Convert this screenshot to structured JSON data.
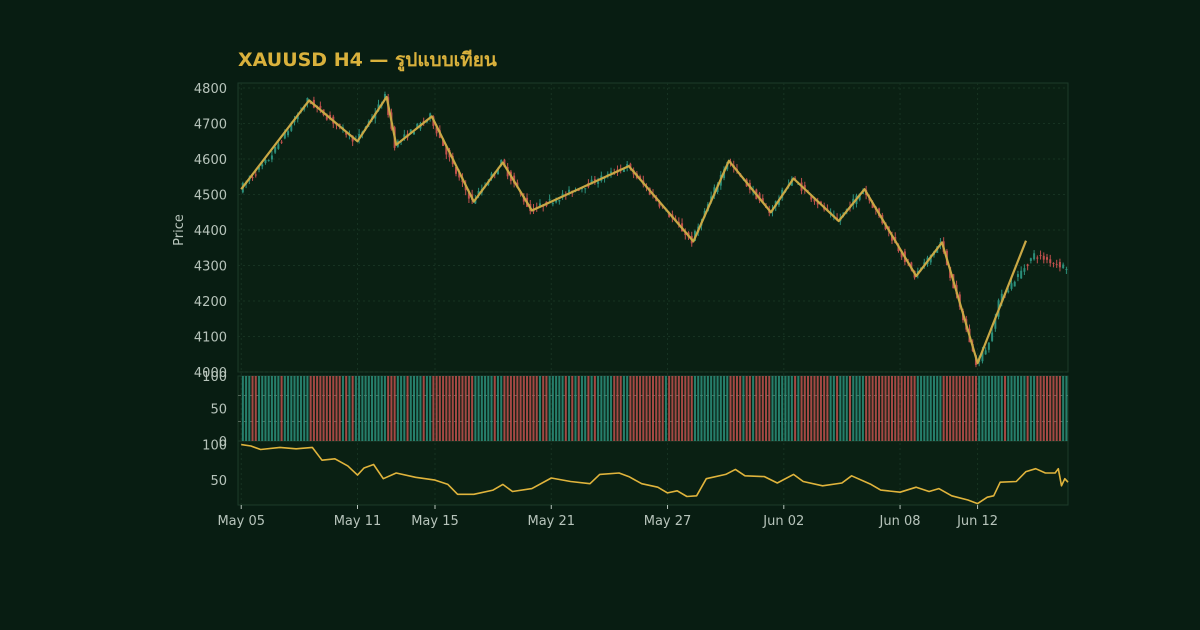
{
  "colors": {
    "background": "#081d12",
    "panel": "#0a2013",
    "grid": "#173322",
    "border": "#1d3b2a",
    "text": "#b7c4bb",
    "title": "#d9b13c",
    "up": "#2b8f7b",
    "down": "#c0504d",
    "zigzag": "#c9a845",
    "oscillator": "#e0b43c"
  },
  "chart_data": {
    "type": "candlestick",
    "title": "XAUUSD H4 — รูปแบบเทียน",
    "ylabel": "Price",
    "ylim": [
      4000,
      4800
    ],
    "yticks": [
      4000,
      4100,
      4200,
      4300,
      4400,
      4500,
      4600,
      4700,
      4800
    ],
    "xlim": [
      "2025-05-04 20:00",
      "2025-06-16 16:00"
    ],
    "xticks": [
      {
        "date": "2025-05-05",
        "label": "May 05"
      },
      {
        "date": "2025-05-11",
        "label": "May 11"
      },
      {
        "date": "2025-05-15",
        "label": "May 15"
      },
      {
        "date": "2025-05-21",
        "label": "May 21"
      },
      {
        "date": "2025-05-27",
        "label": "May 27"
      },
      {
        "date": "2025-06-02",
        "label": "Jun 02"
      },
      {
        "date": "2025-06-08",
        "label": "Jun 08"
      },
      {
        "date": "2025-06-12",
        "label": "Jun 12"
      }
    ],
    "price_path": [
      [
        "2025-05-05 00:00",
        4515
      ],
      [
        "2025-05-06 12:00",
        4600
      ],
      [
        "2025-05-08 12:00",
        4765
      ],
      [
        "2025-05-09 12:00",
        4720
      ],
      [
        "2025-05-11 00:00",
        4650
      ],
      [
        "2025-05-12 12:00",
        4775
      ],
      [
        "2025-05-13 00:00",
        4640
      ],
      [
        "2025-05-14 20:00",
        4720
      ],
      [
        "2025-05-16 04:00",
        4560
      ],
      [
        "2025-05-17 00:00",
        4480
      ],
      [
        "2025-05-18 12:00",
        4590
      ],
      [
        "2025-05-20 00:00",
        4455
      ],
      [
        "2025-05-25 00:00",
        4580
      ],
      [
        "2025-05-28 08:00",
        4368
      ],
      [
        "2025-05-30 04:00",
        4595
      ],
      [
        "2025-06-01 08:00",
        4450
      ],
      [
        "2025-06-02 12:00",
        4545
      ],
      [
        "2025-06-04 20:00",
        4425
      ],
      [
        "2025-06-06 04:00",
        4515
      ],
      [
        "2025-06-08 20:00",
        4270
      ],
      [
        "2025-06-10 04:00",
        4365
      ],
      [
        "2025-06-12 00:00",
        4025
      ],
      [
        "2025-06-12 16:00",
        4080
      ],
      [
        "2025-06-13 04:00",
        4200
      ],
      [
        "2025-06-14 00:00",
        4260
      ],
      [
        "2025-06-15 00:00",
        4330
      ],
      [
        "2025-06-16 16:00",
        4295
      ]
    ],
    "zigzag": [
      [
        "2025-05-05 00:00",
        4515
      ],
      [
        "2025-05-08 12:00",
        4765
      ],
      [
        "2025-05-11 00:00",
        4650
      ],
      [
        "2025-05-12 12:00",
        4775
      ],
      [
        "2025-05-13 00:00",
        4640
      ],
      [
        "2025-05-14 20:00",
        4720
      ],
      [
        "2025-05-17 00:00",
        4480
      ],
      [
        "2025-05-18 12:00",
        4590
      ],
      [
        "2025-05-20 00:00",
        4455
      ],
      [
        "2025-05-25 00:00",
        4580
      ],
      [
        "2025-05-28 08:00",
        4368
      ],
      [
        "2025-05-30 04:00",
        4595
      ],
      [
        "2025-06-01 08:00",
        4450
      ],
      [
        "2025-06-02 12:00",
        4545
      ],
      [
        "2025-06-04 20:00",
        4425
      ],
      [
        "2025-06-06 04:00",
        4515
      ],
      [
        "2025-06-08 20:00",
        4270
      ],
      [
        "2025-06-10 04:00",
        4365
      ],
      [
        "2025-06-12 00:00",
        4025
      ],
      [
        "2025-06-14 12:00",
        4370
      ]
    ],
    "pattern_panel": {
      "ylim": [
        0,
        100
      ],
      "yticks": [
        0,
        50,
        100
      ],
      "reference_lines": [
        30,
        70
      ]
    },
    "oscillator": {
      "ylim": [
        15,
        105
      ],
      "yticks": [
        50,
        100
      ],
      "path": [
        [
          "2025-05-05 00:00",
          100
        ],
        [
          "2025-05-05 12:00",
          98
        ],
        [
          "2025-05-06 00:00",
          93
        ],
        [
          "2025-05-07 00:00",
          96
        ],
        [
          "2025-05-07 20:00",
          94
        ],
        [
          "2025-05-08 16:00",
          96
        ],
        [
          "2025-05-09 04:00",
          78
        ],
        [
          "2025-05-09 20:00",
          80
        ],
        [
          "2025-05-10 12:00",
          70
        ],
        [
          "2025-05-11 00:00",
          57
        ],
        [
          "2025-05-11 08:00",
          67
        ],
        [
          "2025-05-11 20:00",
          72
        ],
        [
          "2025-05-12 08:00",
          52
        ],
        [
          "2025-05-13 00:00",
          60
        ],
        [
          "2025-05-14 00:00",
          54
        ],
        [
          "2025-05-15 00:00",
          50
        ],
        [
          "2025-05-15 16:00",
          44
        ],
        [
          "2025-05-16 04:00",
          30
        ],
        [
          "2025-05-17 00:00",
          30
        ],
        [
          "2025-05-18 00:00",
          36
        ],
        [
          "2025-05-18 12:00",
          44
        ],
        [
          "2025-05-19 00:00",
          34
        ],
        [
          "2025-05-20 00:00",
          38
        ],
        [
          "2025-05-21 00:00",
          53
        ],
        [
          "2025-05-22 00:00",
          48
        ],
        [
          "2025-05-23 00:00",
          45
        ],
        [
          "2025-05-23 12:00",
          58
        ],
        [
          "2025-05-24 12:00",
          60
        ],
        [
          "2025-05-25 00:00",
          55
        ],
        [
          "2025-05-25 16:00",
          45
        ],
        [
          "2025-05-26 12:00",
          40
        ],
        [
          "2025-05-27 00:00",
          32
        ],
        [
          "2025-05-27 12:00",
          35
        ],
        [
          "2025-05-28 00:00",
          27
        ],
        [
          "2025-05-28 12:00",
          28
        ],
        [
          "2025-05-29 00:00",
          52
        ],
        [
          "2025-05-30 00:00",
          58
        ],
        [
          "2025-05-30 12:00",
          65
        ],
        [
          "2025-05-31 00:00",
          56
        ],
        [
          "2025-06-01 00:00",
          55
        ],
        [
          "2025-06-01 16:00",
          46
        ],
        [
          "2025-06-02 12:00",
          58
        ],
        [
          "2025-06-03 00:00",
          48
        ],
        [
          "2025-06-04 00:00",
          42
        ],
        [
          "2025-06-05 00:00",
          46
        ],
        [
          "2025-06-05 12:00",
          56
        ],
        [
          "2025-06-06 12:00",
          44
        ],
        [
          "2025-06-07 00:00",
          36
        ],
        [
          "2025-06-08 00:00",
          33
        ],
        [
          "2025-06-08 20:00",
          40
        ],
        [
          "2025-06-09 12:00",
          34
        ],
        [
          "2025-06-10 00:00",
          38
        ],
        [
          "2025-06-10 16:00",
          28
        ],
        [
          "2025-06-11 12:00",
          22
        ],
        [
          "2025-06-12 00:00",
          17
        ],
        [
          "2025-06-12 12:00",
          26
        ],
        [
          "2025-06-12 20:00",
          28
        ],
        [
          "2025-06-13 04:00",
          47
        ],
        [
          "2025-06-14 00:00",
          48
        ],
        [
          "2025-06-14 12:00",
          62
        ],
        [
          "2025-06-15 00:00",
          66
        ],
        [
          "2025-06-15 12:00",
          60
        ],
        [
          "2025-06-16 00:00",
          60
        ],
        [
          "2025-06-16 04:00",
          66
        ],
        [
          "2025-06-16 08:00",
          42
        ],
        [
          "2025-06-16 12:00",
          52
        ],
        [
          "2025-06-16 16:00",
          47
        ]
      ]
    }
  }
}
